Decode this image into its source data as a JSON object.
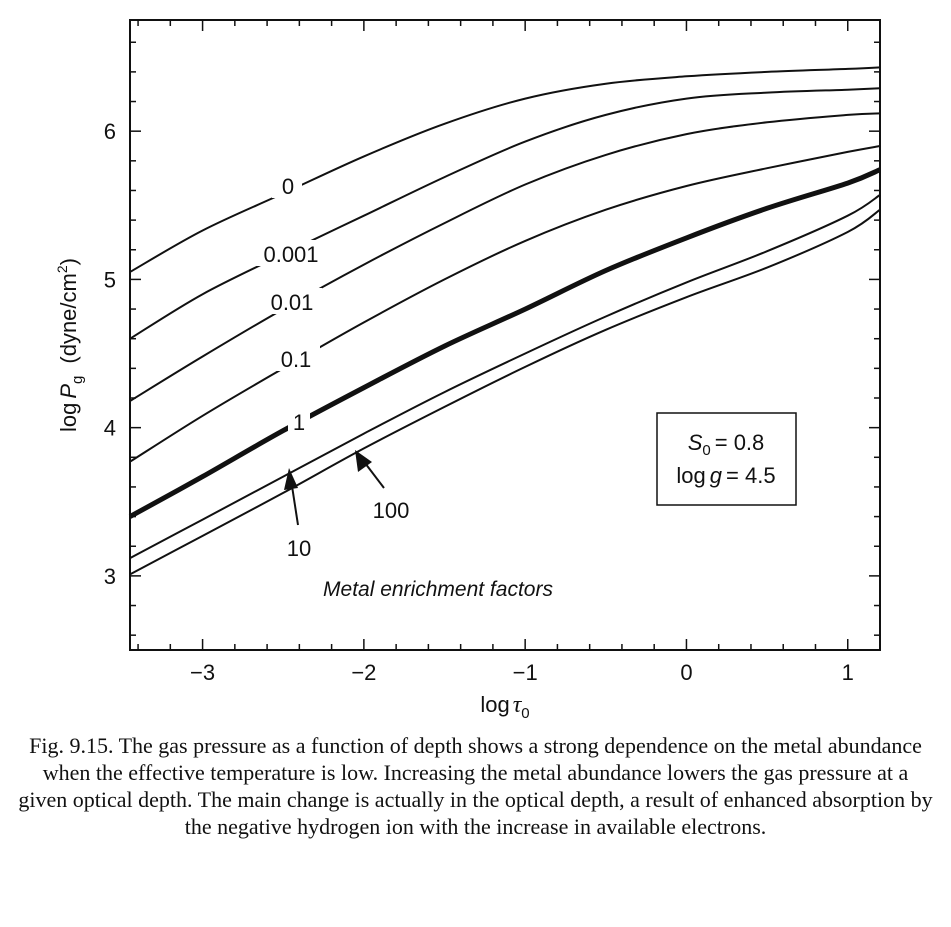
{
  "chart_data": {
    "type": "line",
    "title": "",
    "xlabel": {
      "prefix": "log",
      "symbol": "τ",
      "sub": "0"
    },
    "ylabel": {
      "prefix": "log",
      "symbol": "P",
      "sub": "g",
      "units_prefix": "(dyne/cm",
      "units_sup": "2",
      "units_suffix": ")"
    },
    "xlim": [
      -3.45,
      1.2
    ],
    "ylim": [
      2.5,
      6.75
    ],
    "xticks": [
      -3,
      -2,
      -1,
      0,
      1
    ],
    "yticks": [
      3,
      4,
      5,
      6
    ],
    "xtick_labels": [
      "−3",
      "−2",
      "−1",
      "0",
      "1"
    ],
    "ytick_labels": [
      "3",
      "4",
      "5",
      "6"
    ],
    "x": [
      -3.45,
      -3.0,
      -2.5,
      -2.0,
      -1.5,
      -1.0,
      -0.5,
      0.0,
      0.5,
      1.0,
      1.2
    ],
    "series": [
      {
        "name": "0",
        "values": [
          5.05,
          5.33,
          5.58,
          5.83,
          6.05,
          6.22,
          6.32,
          6.37,
          6.4,
          6.42,
          6.43
        ],
        "bold": false
      },
      {
        "name": "0.001",
        "values": [
          4.6,
          4.9,
          5.17,
          5.43,
          5.69,
          5.93,
          6.11,
          6.22,
          6.26,
          6.28,
          6.29
        ],
        "bold": false
      },
      {
        "name": "0.01",
        "values": [
          4.18,
          4.48,
          4.8,
          5.1,
          5.38,
          5.64,
          5.84,
          5.98,
          6.06,
          6.11,
          6.12
        ],
        "bold": false
      },
      {
        "name": "0.1",
        "values": [
          3.77,
          4.08,
          4.4,
          4.71,
          5.0,
          5.26,
          5.47,
          5.63,
          5.75,
          5.86,
          5.9
        ],
        "bold": false
      },
      {
        "name": "1",
        "values": [
          3.4,
          3.67,
          3.98,
          4.27,
          4.55,
          4.8,
          5.06,
          5.28,
          5.48,
          5.65,
          5.74
        ],
        "bold": true
      },
      {
        "name": "10",
        "values": [
          3.12,
          3.38,
          3.67,
          3.96,
          4.24,
          4.5,
          4.75,
          4.98,
          5.19,
          5.43,
          5.57
        ],
        "bold": false
      },
      {
        "name": "100",
        "values": [
          3.01,
          3.27,
          3.56,
          3.86,
          4.14,
          4.41,
          4.66,
          4.88,
          5.08,
          5.32,
          5.47
        ],
        "bold": false
      }
    ],
    "legend": {
      "s0_symbol": "S",
      "s0_sub": "0",
      "s0_value": "= 0.8",
      "logg_prefix": "log",
      "logg_symbol": "g",
      "logg_value": "= 4.5",
      "placement": "right"
    },
    "annotations": {
      "curve_labels": [
        "0",
        "0.001",
        "0.01",
        "0.1",
        "1",
        "10",
        "100"
      ],
      "note": "Metal enrichment factors"
    }
  },
  "caption": {
    "figure_number": "Fig. 9.15.",
    "text": "The gas pressure as a function of depth shows a strong dependence on the metal abundance when the effective temperature is low. Increasing the metal abundance lowers the gas pressure at a given optical depth. The main change is actually in the optical depth, a result of enhanced absorption by the negative hydrogen ion with the increase in available electrons."
  }
}
